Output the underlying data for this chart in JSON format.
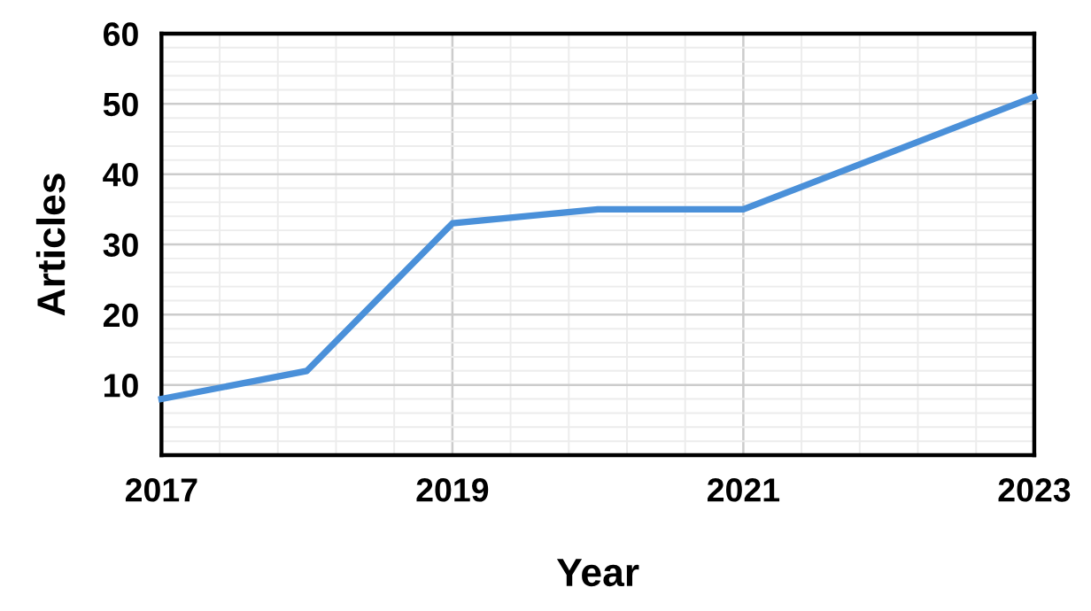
{
  "chart_data": {
    "type": "line",
    "xlabel": "Year",
    "ylabel": "Articles",
    "x": [
      2017,
      2018,
      2019,
      2020,
      2021,
      2023
    ],
    "series": [
      {
        "color": "#4a90d9",
        "values": [
          8,
          12,
          33,
          35,
          35,
          51
        ]
      }
    ],
    "xlim": [
      2017,
      2023
    ],
    "xticks": [
      2017,
      2019,
      2021,
      2023
    ],
    "ylim": [
      0,
      60
    ],
    "yticks": [
      {
        "value": 0,
        "label": null
      },
      10,
      20,
      30,
      40,
      50,
      60
    ],
    "grid": true,
    "marker": "none",
    "line_style": "solid"
  }
}
